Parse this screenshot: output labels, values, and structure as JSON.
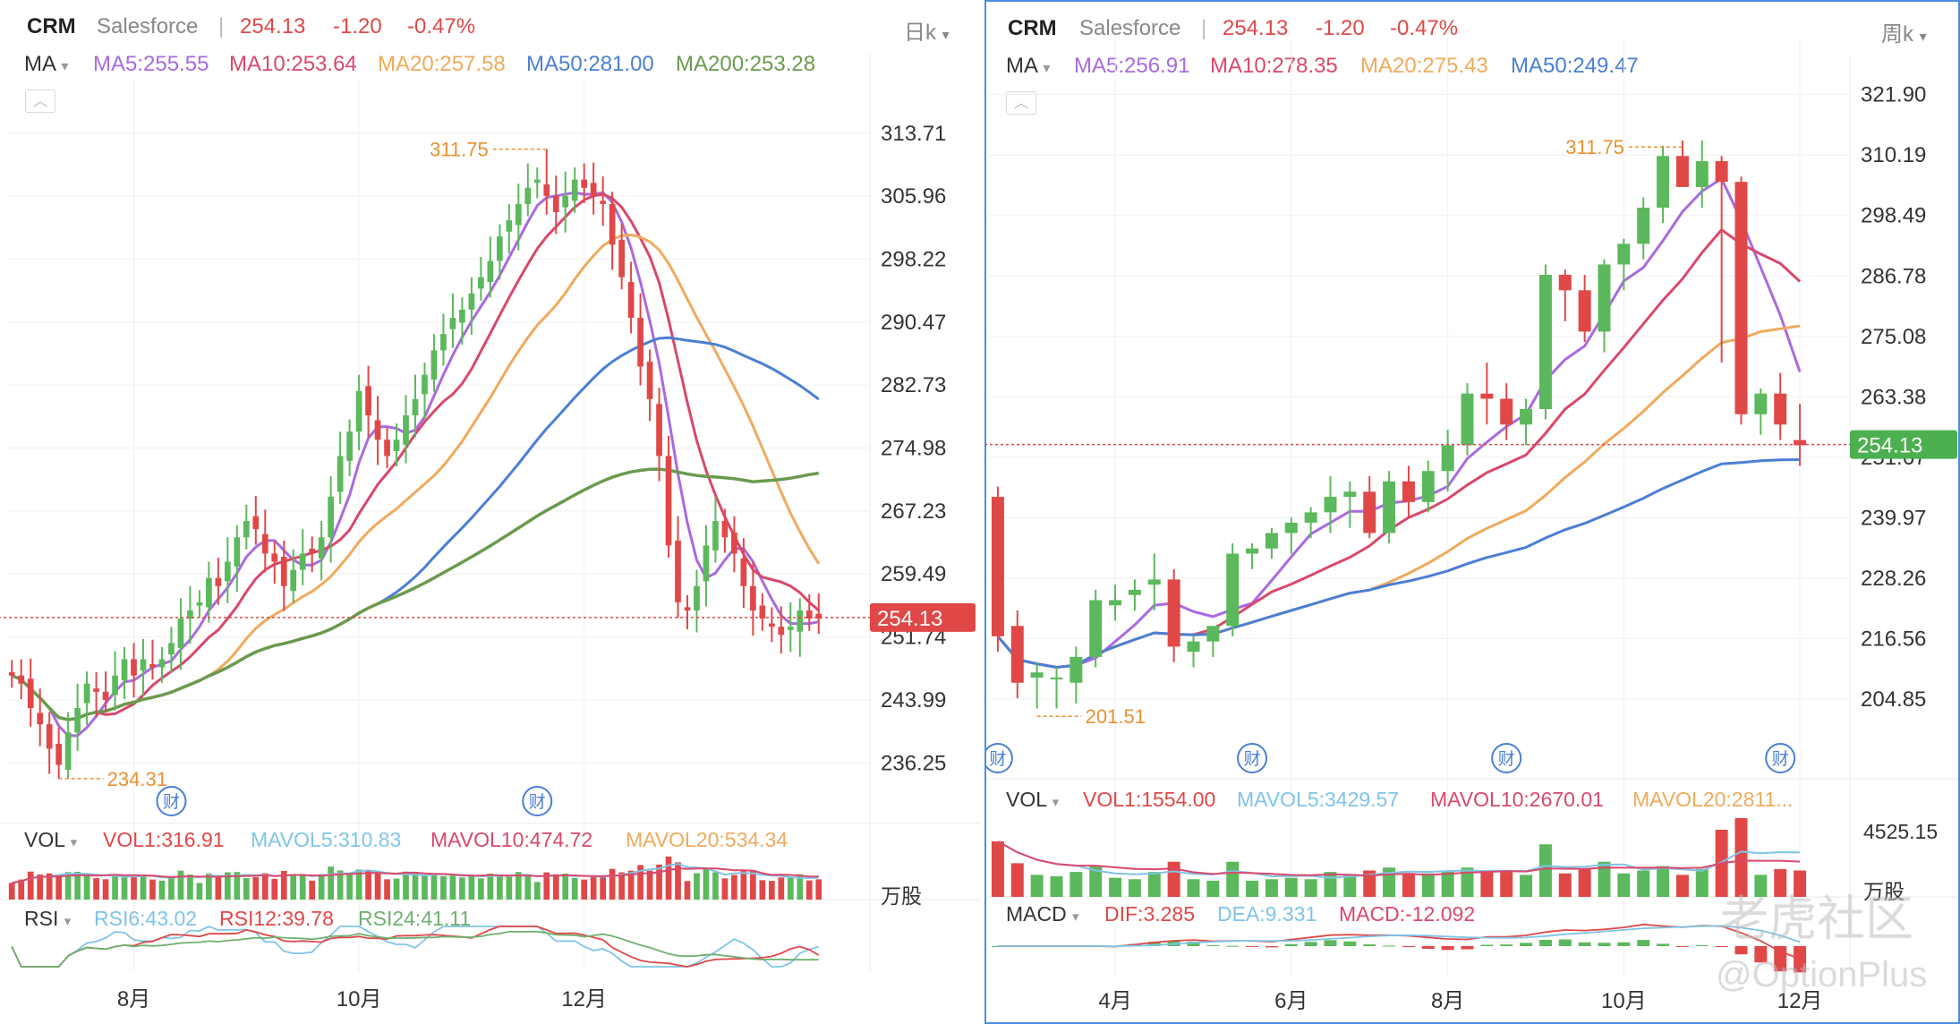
{
  "colors": {
    "up": "#5cb85c",
    "down": "#e04848",
    "ma5": "#a96ae0",
    "ma10": "#d9486b",
    "ma20": "#f0aa5c",
    "ma50": "#4a7fd4",
    "ma200": "#6a9a4e",
    "last": "#e04848",
    "frame": "#4a90e2"
  },
  "daily": {
    "ticker": "CRM",
    "company": "Salesforce",
    "sep": "|",
    "price": "254.13",
    "change": "-1.20",
    "pct": "-0.47%",
    "period": "日k",
    "ma_label": "MA",
    "ma": [
      {
        "key": "ma5",
        "text": "MA5:255.55"
      },
      {
        "key": "ma10",
        "text": "MA10:253.64"
      },
      {
        "key": "ma20",
        "text": "MA20:257.58"
      },
      {
        "key": "ma50",
        "text": "MA50:281.00"
      },
      {
        "key": "ma200",
        "text": "MA200:253.28"
      }
    ],
    "high_marker": "311.75",
    "low_marker": "234.31",
    "last_badge": "254.13",
    "earnings_icon": "财",
    "vol": {
      "label": "VOL",
      "items": [
        {
          "key": "vol",
          "text": "VOL1:316.91"
        },
        {
          "key": "mavol5",
          "text": "MAVOL5:310.83"
        },
        {
          "key": "mavol10",
          "text": "MAVOL10:474.72"
        },
        {
          "key": "mavol20",
          "text": "MAVOL20:534.34"
        }
      ],
      "unit": "万股"
    },
    "rsi": {
      "label": "RSI",
      "items": [
        {
          "key": "rsi6",
          "text": "RSI6:43.02"
        },
        {
          "key": "rsi12",
          "text": "RSI12:39.78"
        },
        {
          "key": "rsi24",
          "text": "RSI24:41.11"
        }
      ]
    },
    "x_labels": [
      "8月",
      "10月",
      "12月"
    ]
  },
  "weekly": {
    "ticker": "CRM",
    "company": "Salesforce",
    "sep": "|",
    "price": "254.13",
    "change": "-1.20",
    "pct": "-0.47%",
    "period": "周k",
    "ma_label": "MA",
    "ma": [
      {
        "key": "ma5",
        "text": "MA5:256.91"
      },
      {
        "key": "ma10",
        "text": "MA10:278.35"
      },
      {
        "key": "ma20",
        "text": "MA20:275.43"
      },
      {
        "key": "ma50",
        "text": "MA50:249.47"
      }
    ],
    "high_marker": "311.75",
    "low_marker": "201.51",
    "last_badge": "254.13",
    "earnings_icon": "财",
    "vol": {
      "label": "VOL",
      "items": [
        {
          "key": "vol",
          "text": "VOL1:1554.00"
        },
        {
          "key": "mavol5",
          "text": "MAVOL5:3429.57"
        },
        {
          "key": "mavol10",
          "text": "MAVOL10:2670.01"
        },
        {
          "key": "mavol20",
          "text": "MAVOL20:2811..."
        }
      ],
      "vol_tick": "4525.15",
      "unit": "万股"
    },
    "macd": {
      "label": "MACD",
      "items": [
        {
          "key": "dif",
          "text": "DIF:3.285"
        },
        {
          "key": "dea",
          "text": "DEA:9.331"
        },
        {
          "key": "macd",
          "text": "MACD:-12.092"
        }
      ]
    },
    "x_labels": [
      "4月",
      "6月",
      "8月",
      "10月",
      "12月"
    ]
  },
  "watermark": {
    "text": "老虎社区",
    "sub": "@OptionPlus"
  },
  "chart_data": [
    {
      "type": "candlestick",
      "title": "CRM Salesforce 日k",
      "ylim": [
        231,
        316
      ],
      "y_ticks": [
        313.71,
        305.96,
        298.22,
        290.47,
        282.73,
        274.98,
        267.23,
        259.49,
        251.74,
        243.99,
        236.25
      ],
      "last_price": 254.13,
      "high": 311.75,
      "low": 234.31,
      "x_tick_index": [
        13,
        37,
        61
      ],
      "earnings_index": [
        17,
        56
      ],
      "closes": [
        247,
        246,
        243,
        241,
        238,
        236,
        240,
        243,
        246,
        245,
        244,
        247,
        249,
        247,
        249,
        248,
        249,
        251,
        254,
        255,
        256,
        259,
        258,
        261,
        264,
        266,
        265,
        262,
        261,
        258,
        260,
        262,
        262,
        264,
        269,
        274,
        277,
        282,
        279,
        276,
        274,
        276,
        279,
        281,
        284,
        287,
        289,
        291,
        292,
        294,
        296,
        298,
        301,
        303,
        305,
        307,
        308,
        306,
        304,
        306,
        308,
        307,
        306,
        305,
        300,
        296,
        291,
        285,
        281,
        274,
        263,
        256,
        255,
        258,
        263,
        266,
        264,
        262,
        258,
        255,
        254,
        253,
        252,
        253,
        255,
        254,
        254
      ]
    },
    {
      "type": "candlestick",
      "title": "CRM Salesforce 周k",
      "ylim": [
        196,
        326
      ],
      "y_ticks": [
        321.9,
        310.19,
        298.49,
        286.78,
        275.08,
        263.38,
        251.67,
        239.97,
        228.26,
        216.56,
        204.85
      ],
      "last_price": 254.13,
      "high": 311.75,
      "low": 201.51,
      "x_tick_index": [
        6,
        15,
        23,
        32,
        41
      ],
      "earnings_index": [
        0,
        13,
        26,
        40
      ],
      "ohlc": [
        [
          244,
          246,
          214,
          217
        ],
        [
          219,
          222,
          205,
          208
        ],
        [
          209,
          212,
          203,
          210
        ],
        [
          209,
          211,
          203,
          209
        ],
        [
          208,
          215,
          204,
          213
        ],
        [
          213,
          226,
          211,
          224
        ],
        [
          223,
          227,
          220,
          224
        ],
        [
          225,
          228,
          222,
          226
        ],
        [
          227,
          233,
          222,
          228
        ],
        [
          228,
          230,
          212,
          215
        ],
        [
          214,
          217,
          211,
          216
        ],
        [
          216,
          218,
          213,
          219
        ],
        [
          219,
          235,
          217,
          233
        ],
        [
          233,
          235,
          230,
          234
        ],
        [
          234,
          238,
          232,
          237
        ],
        [
          237,
          240,
          233,
          239
        ],
        [
          239,
          242,
          236,
          241
        ],
        [
          241,
          248,
          237,
          244
        ],
        [
          244,
          247,
          238,
          245
        ],
        [
          245,
          248,
          236,
          237
        ],
        [
          237,
          249,
          235,
          247
        ],
        [
          247,
          250,
          240,
          243
        ],
        [
          243,
          251,
          241,
          249
        ],
        [
          249,
          257,
          245,
          254
        ],
        [
          254,
          266,
          252,
          264
        ],
        [
          264,
          270,
          258,
          263
        ],
        [
          263,
          266,
          255,
          258
        ],
        [
          258,
          263,
          254,
          261
        ],
        [
          261,
          289,
          259,
          287
        ],
        [
          287,
          288,
          278,
          284
        ],
        [
          284,
          287,
          274,
          276
        ],
        [
          276,
          290,
          272,
          289
        ],
        [
          289,
          294,
          284,
          293
        ],
        [
          293,
          302,
          290,
          300
        ],
        [
          300,
          312,
          297,
          310
        ],
        [
          310,
          313,
          304,
          304
        ],
        [
          304,
          313,
          300,
          309
        ],
        [
          309,
          310,
          270,
          305
        ],
        [
          305,
          306,
          258,
          260
        ],
        [
          260,
          265,
          256,
          264
        ],
        [
          264,
          268,
          255,
          258
        ],
        [
          255,
          262,
          250,
          254
        ]
      ]
    }
  ]
}
